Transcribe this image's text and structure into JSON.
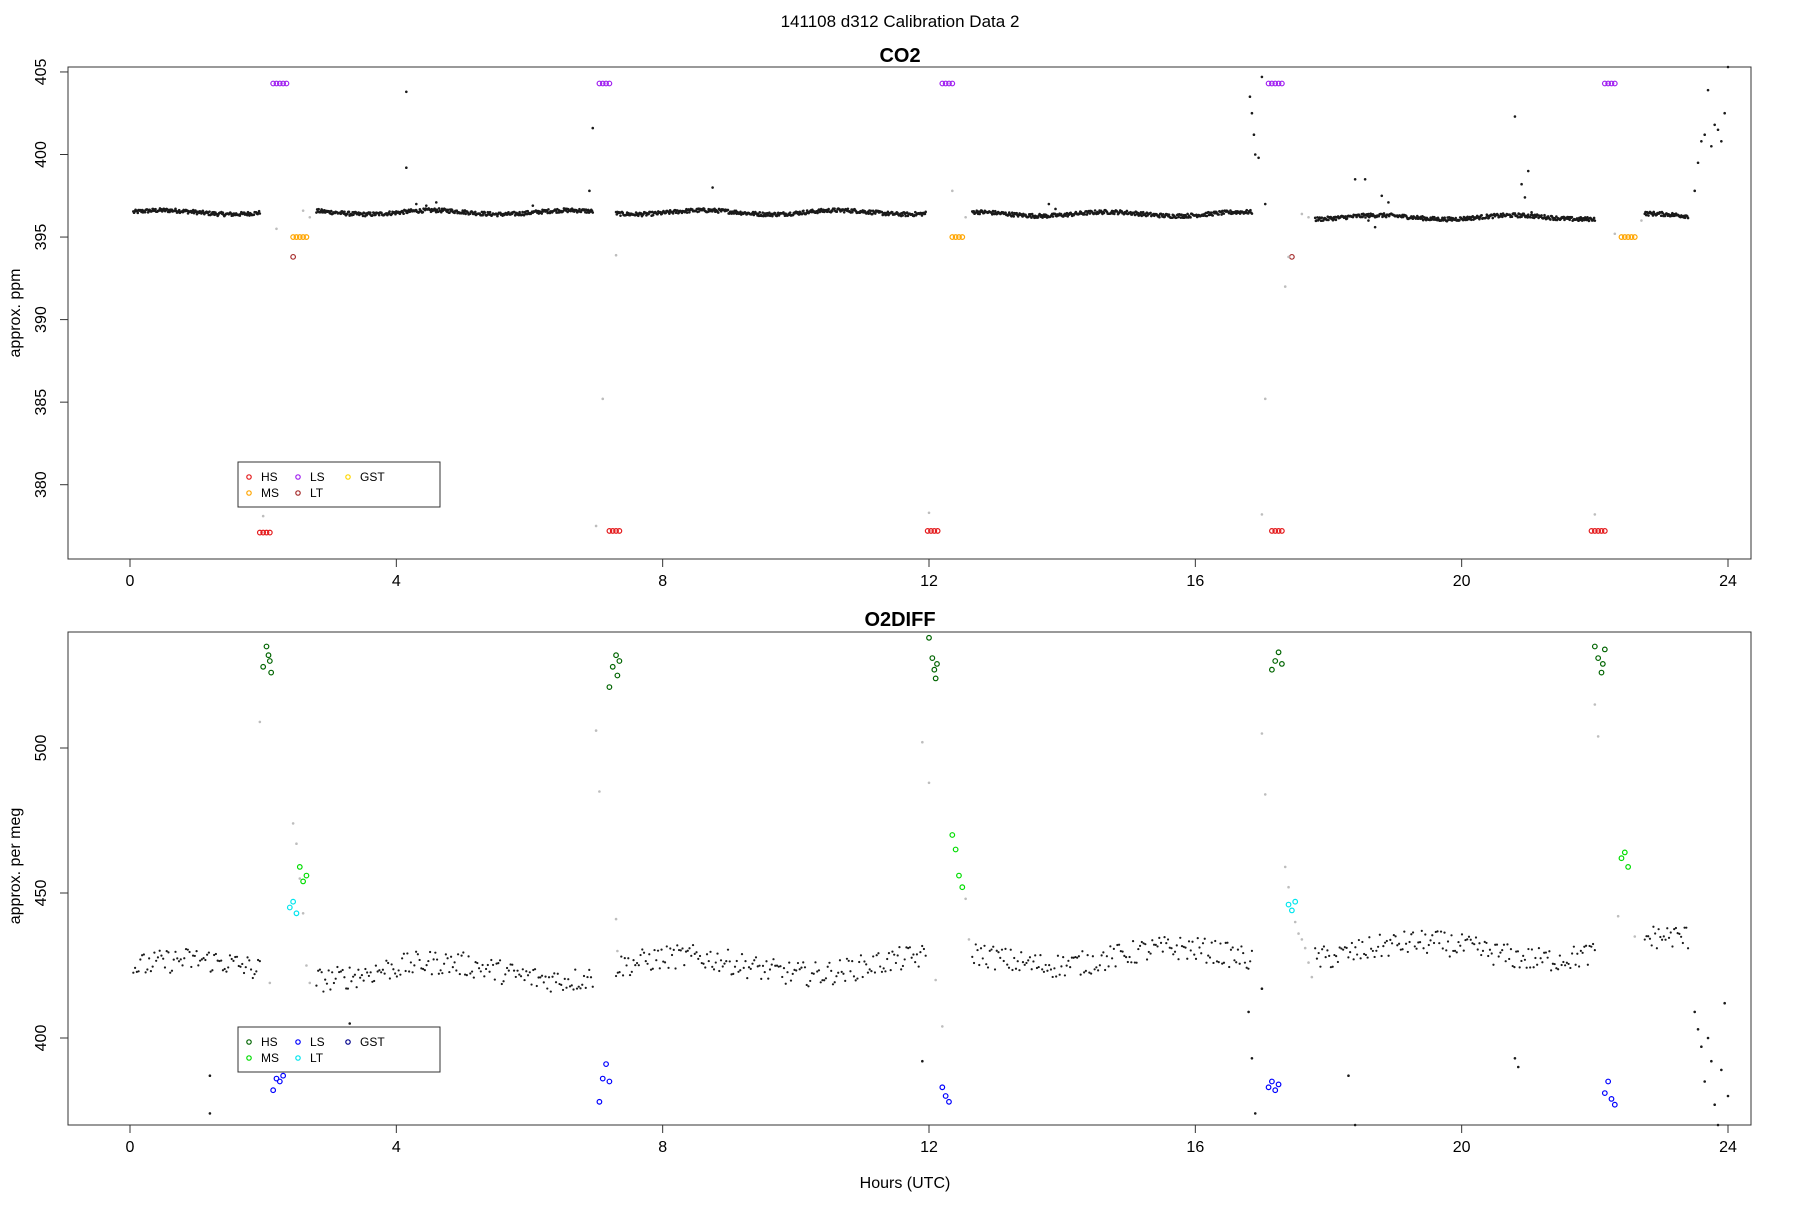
{
  "figure": {
    "title": "141108   d312   Calibration Data 2",
    "xlabel": "Hours (UTC)"
  },
  "colors": {
    "ambient": "#1a1a1a",
    "flush": "#bdbdbd",
    "co2_legend": {
      "HS": "#e41a1c",
      "MS": "#ffa500",
      "LS": "#a020f0",
      "LT": "#a52a2a",
      "GST": "#ffd700"
    },
    "o2_legend": {
      "HS": "#006400",
      "MS": "#00dd00",
      "LS": "#0000ff",
      "LT": "#00e5ee",
      "GST": "#00008b"
    }
  },
  "chart_data": [
    {
      "type": "scatter",
      "title": "CO2",
      "xlabel": "",
      "ylabel": "approx. ppm",
      "xlim": [
        0,
        24
      ],
      "ylim": [
        375.5,
        405.3
      ],
      "xticks": [
        "0",
        "4",
        "8",
        "12",
        "16",
        "20",
        "24"
      ],
      "yticks": [
        "380",
        "385",
        "390",
        "395",
        "400",
        "405"
      ],
      "grid": false,
      "legend": {
        "position": "bottom-left",
        "entries": [
          "HS",
          "MS",
          "LS",
          "LT",
          "GST"
        ]
      },
      "ambient_segments": [
        {
          "x": [
            0.05,
            1.95
          ],
          "y": 396.5
        },
        {
          "x": [
            2.8,
            6.95
          ],
          "y": 396.5
        },
        {
          "x": [
            7.3,
            11.95
          ],
          "y": 396.5
        },
        {
          "x": [
            12.65,
            16.85
          ],
          "y": 396.4
        },
        {
          "x": [
            17.8,
            22.0
          ],
          "y": 396.2
        },
        {
          "x": [
            22.75,
            23.4
          ],
          "y": 396.3
        }
      ],
      "series": [
        {
          "name": "HS",
          "points": [
            [
              1.95,
              377.1
            ],
            [
              2.0,
              377.1
            ],
            [
              2.05,
              377.1
            ],
            [
              2.1,
              377.1
            ],
            [
              7.2,
              377.2
            ],
            [
              7.25,
              377.2
            ],
            [
              7.3,
              377.2
            ],
            [
              7.35,
              377.2
            ],
            [
              11.98,
              377.2
            ],
            [
              12.03,
              377.2
            ],
            [
              12.08,
              377.2
            ],
            [
              12.13,
              377.2
            ],
            [
              17.15,
              377.2
            ],
            [
              17.2,
              377.2
            ],
            [
              17.25,
              377.2
            ],
            [
              17.3,
              377.2
            ],
            [
              21.95,
              377.2
            ],
            [
              22.0,
              377.2
            ],
            [
              22.05,
              377.2
            ],
            [
              22.1,
              377.2
            ],
            [
              22.15,
              377.2
            ]
          ]
        },
        {
          "name": "MS",
          "points": [
            [
              2.45,
              395.0
            ],
            [
              2.5,
              395.0
            ],
            [
              2.55,
              395.0
            ],
            [
              2.6,
              395.0
            ],
            [
              2.65,
              395.0
            ],
            [
              12.35,
              395.0
            ],
            [
              12.4,
              395.0
            ],
            [
              12.45,
              395.0
            ],
            [
              12.5,
              395.0
            ],
            [
              22.4,
              395.0
            ],
            [
              22.45,
              395.0
            ],
            [
              22.5,
              395.0
            ],
            [
              22.55,
              395.0
            ],
            [
              22.6,
              395.0
            ]
          ]
        },
        {
          "name": "LS",
          "points": [
            [
              2.15,
              404.3
            ],
            [
              2.2,
              404.3
            ],
            [
              2.25,
              404.3
            ],
            [
              2.3,
              404.3
            ],
            [
              2.35,
              404.3
            ],
            [
              7.05,
              404.3
            ],
            [
              7.1,
              404.3
            ],
            [
              7.15,
              404.3
            ],
            [
              7.2,
              404.3
            ],
            [
              12.2,
              404.3
            ],
            [
              12.25,
              404.3
            ],
            [
              12.3,
              404.3
            ],
            [
              12.35,
              404.3
            ],
            [
              17.1,
              404.3
            ],
            [
              17.15,
              404.3
            ],
            [
              17.2,
              404.3
            ],
            [
              17.25,
              404.3
            ],
            [
              17.3,
              404.3
            ],
            [
              22.15,
              404.3
            ],
            [
              22.2,
              404.3
            ],
            [
              22.25,
              404.3
            ],
            [
              22.3,
              404.3
            ]
          ]
        },
        {
          "name": "LT",
          "points": [
            [
              2.45,
              393.8
            ],
            [
              17.45,
              393.8
            ]
          ]
        },
        {
          "name": "ambient",
          "points": [
            [
              4.15,
              403.8
            ],
            [
              4.15,
              399.2
            ],
            [
              4.3,
              397.0
            ],
            [
              4.45,
              396.9
            ],
            [
              4.6,
              397.1
            ],
            [
              6.05,
              396.9
            ],
            [
              6.9,
              397.8
            ],
            [
              6.95,
              401.6
            ],
            [
              8.75,
              398.0
            ],
            [
              13.8,
              397.0
            ],
            [
              13.9,
              396.7
            ],
            [
              16.82,
              403.5
            ],
            [
              16.85,
              402.5
            ],
            [
              16.88,
              401.2
            ],
            [
              16.9,
              400.0
            ],
            [
              16.95,
              399.8
            ],
            [
              17.0,
              404.7
            ],
            [
              17.05,
              397.0
            ],
            [
              18.4,
              398.5
            ],
            [
              18.55,
              398.5
            ],
            [
              18.6,
              396.0
            ],
            [
              18.7,
              395.6
            ],
            [
              18.8,
              397.5
            ],
            [
              18.9,
              397.1
            ],
            [
              20.8,
              402.3
            ],
            [
              20.9,
              398.2
            ],
            [
              20.95,
              397.4
            ],
            [
              21.0,
              399.0
            ],
            [
              21.05,
              396.5
            ],
            [
              23.5,
              397.8
            ],
            [
              23.55,
              399.5
            ],
            [
              23.6,
              400.8
            ],
            [
              23.65,
              401.2
            ],
            [
              23.7,
              403.9
            ],
            [
              23.75,
              400.5
            ],
            [
              23.8,
              401.8
            ],
            [
              23.85,
              401.5
            ],
            [
              23.9,
              400.8
            ],
            [
              23.95,
              402.5
            ],
            [
              24.0,
              405.3
            ]
          ]
        },
        {
          "name": "flush",
          "points": [
            [
              2.0,
              378.1
            ],
            [
              2.2,
              395.5
            ],
            [
              2.6,
              396.6
            ],
            [
              2.7,
              396.2
            ],
            [
              7.0,
              377.5
            ],
            [
              7.1,
              385.2
            ],
            [
              7.3,
              393.9
            ],
            [
              12.0,
              378.3
            ],
            [
              12.35,
              397.8
            ],
            [
              12.55,
              396.2
            ],
            [
              17.0,
              378.2
            ],
            [
              17.05,
              385.2
            ],
            [
              17.35,
              392.0
            ],
            [
              17.4,
              393.8
            ],
            [
              17.6,
              396.4
            ],
            [
              17.7,
              396.2
            ],
            [
              22.0,
              378.2
            ],
            [
              22.3,
              395.2
            ],
            [
              22.7,
              396.0
            ]
          ]
        }
      ]
    },
    {
      "type": "scatter",
      "title": "O2DIFF",
      "xlabel": "Hours (UTC)",
      "ylabel": "approx. per meg",
      "xlim": [
        0,
        24
      ],
      "ylim": [
        370,
        540
      ],
      "xticks": [
        "0",
        "4",
        "8",
        "12",
        "16",
        "20",
        "24"
      ],
      "yticks": [
        "400",
        "450",
        "500"
      ],
      "grid": false,
      "legend": {
        "position": "bottom-left",
        "entries": [
          "HS",
          "MS",
          "LS",
          "LT",
          "GST"
        ]
      },
      "ambient_segments": [
        {
          "x": [
            0.05,
            1.95
          ],
          "y": 424
        },
        {
          "x": [
            2.8,
            6.95
          ],
          "y": 423
        },
        {
          "x": [
            7.3,
            11.95
          ],
          "y": 425
        },
        {
          "x": [
            12.65,
            16.85
          ],
          "y": 428
        },
        {
          "x": [
            17.8,
            22.0
          ],
          "y": 430
        },
        {
          "x": [
            22.75,
            23.4
          ],
          "y": 432
        }
      ],
      "series": [
        {
          "name": "HS",
          "points": [
            [
              2.0,
              528
            ],
            [
              2.05,
              535
            ],
            [
              2.08,
              532
            ],
            [
              2.1,
              530
            ],
            [
              2.12,
              526
            ],
            [
              7.2,
              521
            ],
            [
              7.25,
              528
            ],
            [
              7.3,
              532
            ],
            [
              7.32,
              525
            ],
            [
              7.35,
              530
            ],
            [
              12.0,
              538
            ],
            [
              12.05,
              531
            ],
            [
              12.08,
              527
            ],
            [
              12.1,
              524
            ],
            [
              12.12,
              529
            ],
            [
              17.15,
              527
            ],
            [
              17.2,
              530
            ],
            [
              17.25,
              533
            ],
            [
              17.3,
              529
            ],
            [
              22.0,
              535
            ],
            [
              22.05,
              531
            ],
            [
              22.1,
              526
            ],
            [
              22.12,
              529
            ],
            [
              22.15,
              534
            ]
          ]
        },
        {
          "name": "MS",
          "points": [
            [
              2.55,
              459
            ],
            [
              2.6,
              454
            ],
            [
              2.65,
              456
            ],
            [
              12.35,
              470
            ],
            [
              12.4,
              465
            ],
            [
              12.45,
              456
            ],
            [
              12.5,
              452
            ],
            [
              22.4,
              462
            ],
            [
              22.45,
              464
            ],
            [
              22.5,
              459
            ]
          ]
        },
        {
          "name": "LS",
          "points": [
            [
              2.15,
              382
            ],
            [
              2.2,
              386
            ],
            [
              2.25,
              385
            ],
            [
              2.3,
              387
            ],
            [
              7.05,
              378
            ],
            [
              7.1,
              386
            ],
            [
              7.15,
              391
            ],
            [
              7.2,
              385
            ],
            [
              12.2,
              383
            ],
            [
              12.25,
              380
            ],
            [
              12.3,
              378
            ],
            [
              17.1,
              383
            ],
            [
              17.15,
              385
            ],
            [
              17.2,
              382
            ],
            [
              17.25,
              384
            ],
            [
              22.15,
              381
            ],
            [
              22.2,
              385
            ],
            [
              22.25,
              379
            ],
            [
              22.3,
              377
            ]
          ]
        },
        {
          "name": "LT",
          "points": [
            [
              2.4,
              445
            ],
            [
              2.45,
              447
            ],
            [
              2.5,
              443
            ],
            [
              17.4,
              446
            ],
            [
              17.45,
              444
            ],
            [
              17.5,
              447
            ]
          ]
        },
        {
          "name": "ambient",
          "points": [
            [
              1.2,
              387
            ],
            [
              1.2,
              374
            ],
            [
              3.3,
              405
            ],
            [
              4.15,
              398
            ],
            [
              11.9,
              392
            ],
            [
              16.8,
              409
            ],
            [
              16.85,
              393
            ],
            [
              16.9,
              374
            ],
            [
              17.0,
              417
            ],
            [
              18.3,
              387
            ],
            [
              18.4,
              370
            ],
            [
              20.8,
              393
            ],
            [
              20.85,
              390
            ],
            [
              23.5,
              409
            ],
            [
              23.55,
              403
            ],
            [
              23.6,
              397
            ],
            [
              23.65,
              385
            ],
            [
              23.7,
              400
            ],
            [
              23.75,
              392
            ],
            [
              23.8,
              377
            ],
            [
              23.85,
              370
            ],
            [
              23.9,
              389
            ],
            [
              23.95,
              412
            ],
            [
              24.0,
              380
            ]
          ]
        },
        {
          "name": "flush",
          "points": [
            [
              1.95,
              509
            ],
            [
              2.1,
              419
            ],
            [
              2.45,
              474
            ],
            [
              2.5,
              467
            ],
            [
              2.55,
              455
            ],
            [
              2.6,
              443
            ],
            [
              2.65,
              425
            ],
            [
              2.7,
              419
            ],
            [
              7.0,
              506
            ],
            [
              7.05,
              485
            ],
            [
              7.3,
              441
            ],
            [
              7.32,
              430
            ],
            [
              11.9,
              502
            ],
            [
              12.0,
              488
            ],
            [
              12.1,
              420
            ],
            [
              12.2,
              404
            ],
            [
              12.55,
              448
            ],
            [
              12.6,
              434
            ],
            [
              17.0,
              505
            ],
            [
              17.05,
              484
            ],
            [
              17.35,
              459
            ],
            [
              17.4,
              452
            ],
            [
              17.5,
              440
            ],
            [
              17.55,
              436
            ],
            [
              17.6,
              434
            ],
            [
              17.65,
              431
            ],
            [
              17.7,
              426
            ],
            [
              17.75,
              421
            ],
            [
              22.0,
              515
            ],
            [
              22.05,
              504
            ],
            [
              22.35,
              442
            ],
            [
              22.6,
              435
            ]
          ]
        }
      ]
    }
  ]
}
